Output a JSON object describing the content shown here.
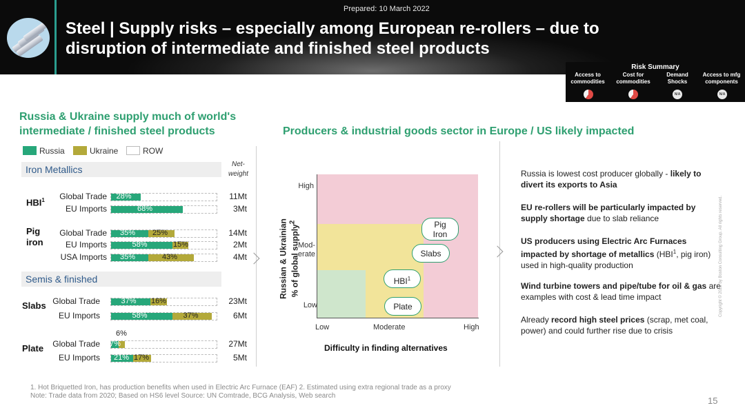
{
  "header": {
    "prepared": "Prepared: 10 March 2022",
    "title": "Steel | Supply risks – especially among European re-rollers – due to disruption of intermediate and finished steel products"
  },
  "risk_summary": {
    "title": "Risk Summary",
    "items": [
      {
        "label_1": "Access to",
        "label_2": "commodities",
        "status": "high"
      },
      {
        "label_1": "Cost for",
        "label_2": "commodities",
        "status": "high"
      },
      {
        "label_1": "Demand",
        "label_2": "Shocks",
        "status": "N/A"
      },
      {
        "label_1": "Access to mfg",
        "label_2": "components",
        "status": "N/A"
      }
    ],
    "colors": {
      "risk": "#e04a45"
    }
  },
  "left": {
    "heading_1": "Russia & Ukraine supply much of world's",
    "heading_2": "intermediate / finished steel products",
    "legend": [
      {
        "label": "Russia",
        "color": "#27a77a"
      },
      {
        "label": "Ukraine",
        "color": "#b3a93a"
      },
      {
        "label": "ROW",
        "color": "#ffffff"
      }
    ],
    "net_weight_1": "Net-",
    "net_weight_2": "weight",
    "sections": {
      "iron": "Iron Metallics",
      "semis": "Semis & finished"
    },
    "products": {
      "hbi": "HBI",
      "hbi_sup": "1",
      "pig_1": "Pig",
      "pig_2": "iron",
      "slabs": "Slabs",
      "plate": "Plate"
    },
    "rows": [
      {
        "label": "Global Trade",
        "russia": "28%",
        "ukraine": "",
        "weight": "11Mt"
      },
      {
        "label": "EU Imports",
        "russia": "68%",
        "ukraine": "",
        "weight": "3Mt"
      },
      {
        "label": "Global Trade",
        "russia": "35%",
        "ukraine": "25%",
        "weight": "14Mt"
      },
      {
        "label": "EU Imports",
        "russia": "58%",
        "ukraine": "15%",
        "weight": "2Mt"
      },
      {
        "label": "USA Imports",
        "russia": "35%",
        "ukraine": "43%",
        "weight": "4Mt"
      },
      {
        "label": "Global Trade",
        "russia": "37%",
        "ukraine": "16%",
        "weight": "23Mt"
      },
      {
        "label": "EU Imports",
        "russia": "58%",
        "ukraine": "37%",
        "weight": "6Mt"
      },
      {
        "label": "Global Trade",
        "russia": "7%",
        "ukraine": "6%",
        "weight": "27Mt"
      },
      {
        "label": "EU Imports",
        "russia": "21%",
        "ukraine": "17%",
        "weight": "5Mt"
      }
    ],
    "values": [
      {
        "russia": 0.28,
        "ukraine": 0.0
      },
      {
        "russia": 0.68,
        "ukraine": 0.0
      },
      {
        "russia": 0.35,
        "ukraine": 0.25
      },
      {
        "russia": 0.58,
        "ukraine": 0.15
      },
      {
        "russia": 0.35,
        "ukraine": 0.43
      },
      {
        "russia": 0.37,
        "ukraine": 0.16
      },
      {
        "russia": 0.58,
        "ukraine": 0.37
      },
      {
        "russia": 0.07,
        "ukraine": 0.06
      },
      {
        "russia": 0.21,
        "ukraine": 0.17
      }
    ]
  },
  "right": {
    "heading": "Producers & industrial goods sector in Europe / US likely impacted",
    "matrix": {
      "y_title_1": "Russian & Ukrainian",
      "y_title_2": "% of global supply",
      "y_title_sup": "2",
      "y_ticks": {
        "high": "High",
        "mod_1": "Mod-",
        "mod_2": "erate",
        "low": "Low"
      },
      "x_ticks": {
        "low": "Low",
        "moderate": "Moderate",
        "high": "High"
      },
      "x_title": "Difficulty in finding alternatives",
      "labels": {
        "pig_1": "Pig",
        "pig_2": "Iron",
        "slabs": "Slabs",
        "hbi": "HBI",
        "hbi_sup": "1",
        "plate": "Plate"
      },
      "colors": {
        "high": "#f3ccd6",
        "moderate": "#f2e49a",
        "low": "#cfe6cc"
      }
    },
    "bullets": [
      {
        "t1": "Russia is lowest cost producer globally - ",
        "b1": "likely to divert its exports to Asia"
      },
      {
        "b1": "EU re-rollers will be particularly impacted by supply shortage",
        "t1": " due to slab reliance"
      },
      {
        "b1": "US producers using Electric Arc Furnaces impacted by shortage of metallics",
        "t1": " (HBI",
        "sup": "1",
        "t2": ", pig iron) used in high-quality production"
      },
      {
        "b1": "Wind turbine towers and pipe/tube for oil & gas",
        "t1": " are examples with cost & lead time impact"
      },
      {
        "t1": "Already ",
        "b1": "record high steel prices",
        "t2": " (scrap, met coal, power) and could further rise due to crisis"
      }
    ]
  },
  "footer": {
    "line1": "1. Hot Briquetted Iron, has production benefits when used in Electric Arc Furnace (EAF)  2. Estimated using extra regional trade as a proxy",
    "line2": "Note: Trade data from 2020; Based on HS6 level   Source: UN Comtrade, BCG Analysis, Web search",
    "page": "15",
    "copyright": "Copyright © 2022 by Boston Consulting Group. All rights reserved."
  }
}
